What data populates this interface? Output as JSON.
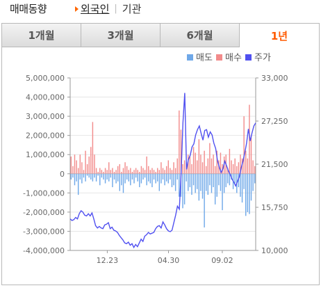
{
  "header": {
    "title": "매매동향",
    "sub_active": "외국인",
    "sub_inactive": "기관"
  },
  "tabs": [
    {
      "label": "1개월",
      "active": false
    },
    {
      "label": "3개월",
      "active": false
    },
    {
      "label": "6개월",
      "active": false
    },
    {
      "label": "1년",
      "active": true
    }
  ],
  "colors": {
    "sell": "#6fa8e8",
    "buy": "#f28b8b",
    "price": "#5050f0",
    "active_tab": "#ff5a00"
  },
  "chart_data": {
    "type": "bar",
    "legend_placement": "top-right",
    "legend": [
      {
        "label": "매도",
        "color": "#6fa8e8"
      },
      {
        "label": "매수",
        "color": "#f28b8b"
      },
      {
        "label": "주가",
        "color": "#5050f0"
      }
    ],
    "x_ticks": [
      "12.23",
      "04.30",
      "09.02"
    ],
    "y_left": {
      "ticks": [
        "5,000,000",
        "4,000,000",
        "3,000,000",
        "2,000,000",
        "1,000,000",
        "0",
        "-1,000,000",
        "-2,000,000",
        "-3,000,000",
        "-4,000,000"
      ],
      "range": [
        -4000000,
        5000000
      ]
    },
    "y_right": {
      "ticks": [
        "33,000",
        "27,250",
        "21,500",
        "15,750",
        "10,000"
      ],
      "range": [
        10000,
        33000
      ]
    },
    "series": [
      {
        "name": "매수",
        "color": "#f28b8b",
        "values": [
          900000,
          400000,
          1000000,
          700000,
          300000,
          1000000,
          600000,
          200000,
          1200000,
          500000,
          900000,
          1400000,
          2700000,
          1000000,
          300000,
          100000,
          300000,
          200000,
          100000,
          300000,
          200000,
          600000,
          200000,
          300000,
          100000,
          200000,
          400000,
          500000,
          100000,
          300000,
          600000,
          400000,
          200000,
          300000,
          100000,
          200000,
          300000,
          200000,
          100000,
          400000,
          300000,
          200000,
          900000,
          400000,
          200000,
          300000,
          200000,
          100000,
          300000,
          200000,
          600000,
          300000,
          200000,
          400000,
          700000,
          300000,
          200000,
          600000,
          300000,
          800000,
          3300000,
          2300000,
          500000,
          700000,
          600000,
          1000000,
          900000,
          500000,
          1400000,
          1100000,
          700000,
          1800000,
          1000000,
          600000,
          1200000,
          400000,
          800000,
          1600000,
          800000,
          1000000,
          400000,
          1200000,
          700000,
          1100000,
          500000,
          900000,
          1000000,
          300000,
          1300000,
          700000,
          500000,
          800000,
          400000,
          600000,
          1000000,
          800000,
          3000000,
          1200000,
          800000,
          3600000,
          2000000,
          700000,
          400000
        ]
      },
      {
        "name": "매도",
        "color": "#6fa8e8",
        "values": [
          -300000,
          -200000,
          -600000,
          -400000,
          -1100000,
          -300000,
          -500000,
          -200000,
          -400000,
          -100000,
          -200000,
          -300000,
          -400000,
          -200000,
          -400000,
          -100000,
          -600000,
          -200000,
          -300000,
          -500000,
          -300000,
          -400000,
          -200000,
          -700000,
          -300000,
          -500000,
          -400000,
          -900000,
          -600000,
          -1000000,
          -500000,
          -300000,
          -400000,
          -600000,
          -300000,
          -500000,
          -200000,
          -400000,
          -700000,
          -500000,
          -300000,
          -200000,
          -600000,
          -400000,
          -500000,
          -700000,
          -300000,
          -500000,
          -400000,
          -900000,
          -500000,
          -300000,
          -600000,
          -400000,
          -500000,
          -300000,
          -700000,
          -600000,
          -900000,
          -300000,
          -1200000,
          -1200000,
          -1800000,
          -1600000,
          -400000,
          -900000,
          -700000,
          -1100000,
          -600000,
          -1000000,
          -800000,
          -1400000,
          -900000,
          -1300000,
          -2800000,
          -900000,
          -1100000,
          -600000,
          -1000000,
          -700000,
          -1600000,
          -1200000,
          -600000,
          -900000,
          -1900000,
          -1000000,
          -700000,
          -500000,
          -600000,
          -300000,
          -800000,
          -500000,
          -1000000,
          -700000,
          -1200000,
          -1500000,
          -800000,
          -2200000,
          -2000000,
          -2100000,
          -1400000,
          -900000,
          -500000
        ]
      },
      {
        "name": "주가",
        "color": "#5050f0",
        "values": [
          14200,
          14000,
          14100,
          14400,
          14200,
          14900,
          15300,
          15100,
          14700,
          14600,
          14900,
          14600,
          15000,
          14200,
          13300,
          13000,
          13200,
          13000,
          12900,
          13400,
          13500,
          13700,
          12900,
          13100,
          12700,
          12600,
          12400,
          12000,
          11700,
          11400,
          11000,
          10900,
          11100,
          10700,
          10900,
          10400,
          10800,
          10500,
          11000,
          11500,
          11200,
          11900,
          12100,
          12400,
          12200,
          12300,
          12400,
          12900,
          13200,
          13300,
          13000,
          13800,
          13400,
          12900,
          12600,
          12500,
          12700,
          13700,
          14700,
          15900,
          15500,
          20300,
          27000,
          31000,
          20800,
          22100,
          22700,
          23800,
          24200,
          25400,
          26100,
          26600,
          25600,
          24700,
          26000,
          26100,
          25100,
          25800,
          25400,
          24300,
          23600,
          22000,
          21100,
          20400,
          20900,
          21900,
          21300,
          20600,
          20100,
          19500,
          19100,
          18600,
          19200,
          19800,
          21000,
          21900,
          23000,
          24300,
          26200,
          24600,
          25700,
          26600,
          27000
        ]
      }
    ]
  }
}
